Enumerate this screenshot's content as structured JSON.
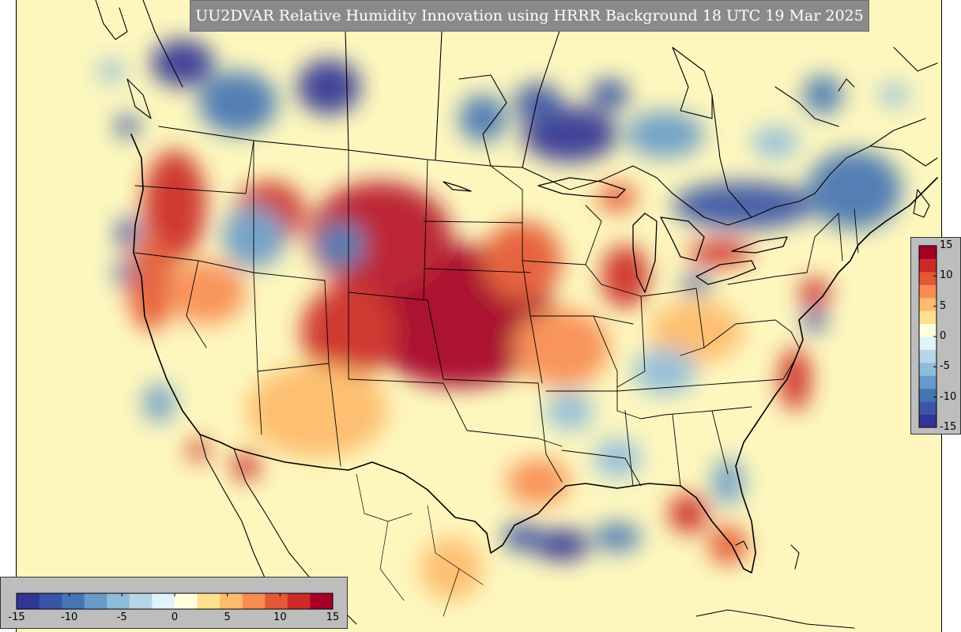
{
  "title": "UU2DVAR Relative Humidity Innovation using HRRR Background 18 UTC 19 Mar 2025",
  "colorbar": {
    "min": -15,
    "max": 15,
    "ticks": [
      "-15",
      "-10",
      "-5",
      "0",
      "5",
      "10",
      "15"
    ],
    "tick_values": [
      -15,
      -10,
      -5,
      0,
      5,
      10,
      15
    ],
    "colors": [
      "#313695",
      "#3a55a5",
      "#4575b4",
      "#6a9bc8",
      "#8fbcdb",
      "#b6d6e8",
      "#e0f3f8",
      "#fefedf",
      "#fee090",
      "#fdbb6c",
      "#f88d52",
      "#e45835",
      "#cc2a26",
      "#a50026"
    ]
  },
  "map": {
    "background_color": "#fdf7be",
    "boundary_color": "#000000"
  }
}
